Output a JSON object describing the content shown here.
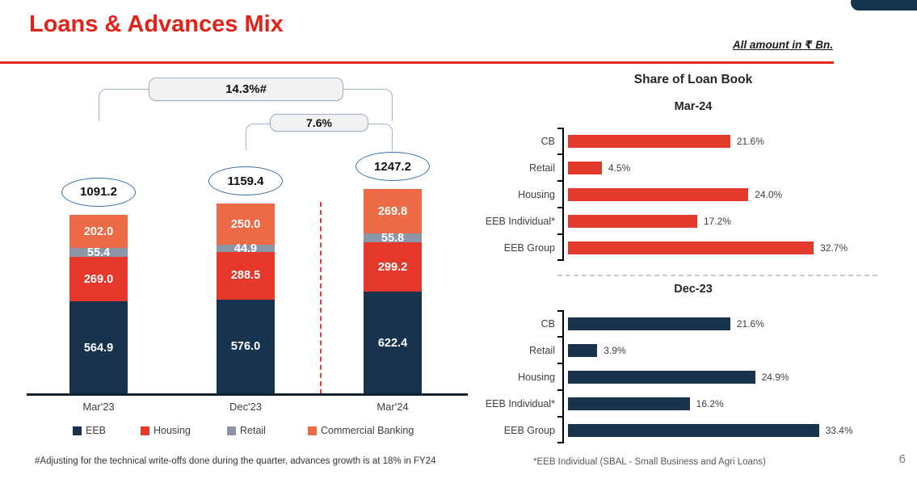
{
  "header": {
    "title": "Loans & Advances Mix",
    "amount_note": "All amount in ₹ Bn.",
    "page_number": "6"
  },
  "colors": {
    "title_red": "#E2231A",
    "rule_red": "#E8291F",
    "eeb_navy": "#17334D",
    "housing_red": "#E5382B",
    "retail_gray": "#8D96A8",
    "commercial_orange": "#EC6A45",
    "mar24_bar_red": "#E23B2E",
    "dec23_bar_navy": "#17334D"
  },
  "chart_data": [
    {
      "type": "bar",
      "stacked": true,
      "orientation": "vertical",
      "categories": [
        "Mar'23",
        "Dec'23",
        "Mar'24"
      ],
      "totals": [
        1091.2,
        1159.4,
        1247.2
      ],
      "series": [
        {
          "name": "EEB",
          "color": "#17334D",
          "values": [
            564.9,
            576.0,
            622.4
          ]
        },
        {
          "name": "Housing",
          "color": "#E5382B",
          "values": [
            269.0,
            288.5,
            299.2
          ]
        },
        {
          "name": "Retail",
          "color": "#8D96A8",
          "values": [
            55.4,
            44.9,
            55.8
          ]
        },
        {
          "name": "Commercial Banking",
          "color": "#EC6A45",
          "values": [
            202.0,
            250.0,
            269.8
          ]
        }
      ],
      "growth_callouts": [
        {
          "label": "14.3%#",
          "from": "Mar'23",
          "to": "Mar'24"
        },
        {
          "label": "7.6%",
          "from": "Dec'23",
          "to": "Mar'24"
        }
      ],
      "legend_position": "bottom",
      "grid": false
    },
    {
      "type": "bar",
      "orientation": "horizontal",
      "title": "Share of Loan Book",
      "subtitle": "Mar-24",
      "categories": [
        "CB",
        "Retail",
        "Housing",
        "EEB Individual*",
        "EEB Group"
      ],
      "values": [
        21.6,
        4.5,
        24.0,
        17.2,
        32.7
      ],
      "labels": [
        "21.6%",
        "4.5%",
        "24.0%",
        "17.2%",
        "32.7%"
      ],
      "color": "#E23B2E",
      "xlim": [
        0,
        35
      ],
      "grid": false
    },
    {
      "type": "bar",
      "orientation": "horizontal",
      "subtitle": "Dec-23",
      "categories": [
        "CB",
        "Retail",
        "Housing",
        "EEB Individual*",
        "EEB Group"
      ],
      "values": [
        21.6,
        3.9,
        24.9,
        16.2,
        33.4
      ],
      "labels": [
        "21.6%",
        "3.9%",
        "24.9%",
        "16.2%",
        "33.4%"
      ],
      "color": "#17334D",
      "xlim": [
        0,
        35
      ],
      "grid": false
    }
  ],
  "callouts": {
    "growth_1": "14.3%#",
    "growth_2": "7.6%"
  },
  "right_panel": {
    "title": "Share of Loan Book",
    "subtitle_1": "Mar-24",
    "subtitle_2": "Dec-23"
  },
  "footnotes": {
    "left": "#Adjusting for the technical write-offs done during the quarter, advances growth is at 18% in FY24",
    "right": "*EEB Individual (SBAL - Small Business and Agri Loans)"
  }
}
